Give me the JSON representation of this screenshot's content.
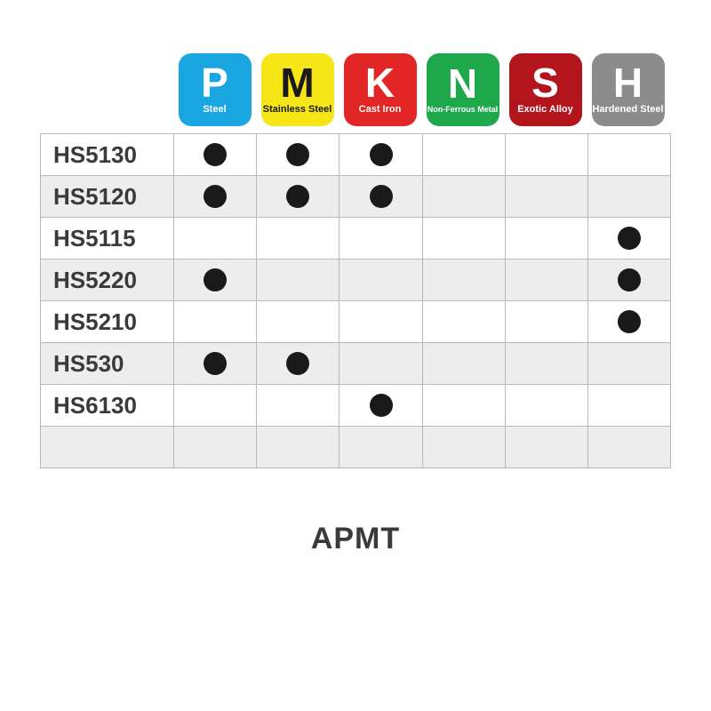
{
  "footer_label": "APMT",
  "dot_color": "#1a1a1a",
  "columns": [
    {
      "letter": "P",
      "sub": "Steel",
      "bg": "#1aa6e0",
      "fg": "#ffffff",
      "sub_fg": "#ffffff"
    },
    {
      "letter": "M",
      "sub": "Stainless Steel",
      "bg": "#f6e617",
      "fg": "#1a1a1a",
      "sub_fg": "#1a1a1a"
    },
    {
      "letter": "K",
      "sub": "Cast Iron",
      "bg": "#e22525",
      "fg": "#ffffff",
      "sub_fg": "#ffffff"
    },
    {
      "letter": "N",
      "sub": "Non-Ferrous Metal",
      "bg": "#1fa84b",
      "fg": "#ffffff",
      "sub_fg": "#ffffff",
      "sub_tiny": true
    },
    {
      "letter": "S",
      "sub": "Exotic Alloy",
      "bg": "#b3151d",
      "fg": "#ffffff",
      "sub_fg": "#ffffff"
    },
    {
      "letter": "H",
      "sub": "Hardened Steel",
      "bg": "#8c8c8c",
      "fg": "#ffffff",
      "sub_fg": "#ffffff"
    }
  ],
  "rows": [
    {
      "label": "HS5130",
      "vals": [
        1,
        1,
        1,
        0,
        0,
        0
      ]
    },
    {
      "label": "HS5120",
      "vals": [
        1,
        1,
        1,
        0,
        0,
        0
      ]
    },
    {
      "label": "HS5115",
      "vals": [
        0,
        0,
        0,
        0,
        0,
        1
      ]
    },
    {
      "label": "HS5220",
      "vals": [
        1,
        0,
        0,
        0,
        0,
        1
      ]
    },
    {
      "label": "HS5210",
      "vals": [
        0,
        0,
        0,
        0,
        0,
        1
      ]
    },
    {
      "label": "HS530",
      "vals": [
        1,
        1,
        0,
        0,
        0,
        0
      ]
    },
    {
      "label": "HS6130",
      "vals": [
        0,
        0,
        1,
        0,
        0,
        0
      ]
    },
    {
      "label": "",
      "vals": [
        0,
        0,
        0,
        0,
        0,
        0
      ]
    }
  ]
}
